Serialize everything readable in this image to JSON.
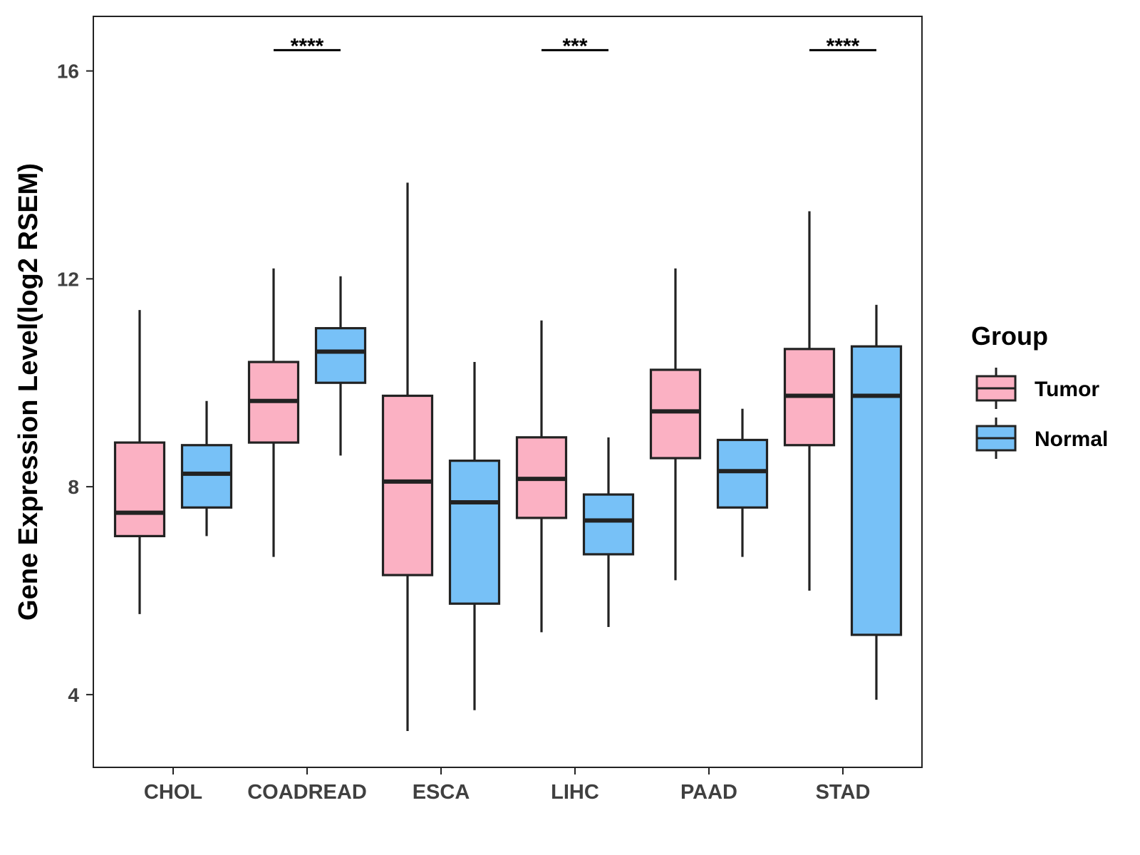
{
  "chart_data": {
    "type": "boxplot",
    "title": "",
    "xlabel": "",
    "ylabel": "Gene Expression Level(log2 RSEM)",
    "ylim": [
      2.6,
      17.05
    ],
    "yticks": [
      4,
      8,
      12,
      16
    ],
    "grid": false,
    "categories": [
      "CHOL",
      "COADREAD",
      "ESCA",
      "LIHC",
      "PAAD",
      "STAD"
    ],
    "legend": {
      "title": "Group",
      "position": "right",
      "entries": [
        {
          "name": "Tumor",
          "color": "#fbb1c3"
        },
        {
          "name": "Normal",
          "color": "#77c1f7"
        }
      ]
    },
    "series": [
      {
        "name": "Tumor",
        "color": "#fbb1c3",
        "boxes": [
          {
            "whisker_low": 5.55,
            "q1": 7.05,
            "median": 7.5,
            "q3": 8.85,
            "whisker_high": 11.4
          },
          {
            "whisker_low": 6.65,
            "q1": 8.85,
            "median": 9.65,
            "q3": 10.4,
            "whisker_high": 12.2
          },
          {
            "whisker_low": 3.3,
            "q1": 6.3,
            "median": 8.1,
            "q3": 9.75,
            "whisker_high": 13.85
          },
          {
            "whisker_low": 5.2,
            "q1": 7.4,
            "median": 8.15,
            "q3": 8.95,
            "whisker_high": 11.2
          },
          {
            "whisker_low": 6.2,
            "q1": 8.55,
            "median": 9.45,
            "q3": 10.25,
            "whisker_high": 12.2
          },
          {
            "whisker_low": 6.0,
            "q1": 8.8,
            "median": 9.75,
            "q3": 10.65,
            "whisker_high": 13.3
          }
        ]
      },
      {
        "name": "Normal",
        "color": "#77c1f7",
        "boxes": [
          {
            "whisker_low": 7.05,
            "q1": 7.6,
            "median": 8.25,
            "q3": 8.8,
            "whisker_high": 9.65
          },
          {
            "whisker_low": 8.6,
            "q1": 10.0,
            "median": 10.6,
            "q3": 11.05,
            "whisker_high": 12.05
          },
          {
            "whisker_low": 3.7,
            "q1": 5.75,
            "median": 7.7,
            "q3": 8.5,
            "whisker_high": 10.4
          },
          {
            "whisker_low": 5.3,
            "q1": 6.7,
            "median": 7.35,
            "q3": 7.85,
            "whisker_high": 8.95
          },
          {
            "whisker_low": 6.65,
            "q1": 7.6,
            "median": 8.3,
            "q3": 8.9,
            "whisker_high": 9.5
          },
          {
            "whisker_low": 3.9,
            "q1": 5.15,
            "median": 9.75,
            "q3": 10.7,
            "whisker_high": 11.5
          }
        ]
      }
    ],
    "significance": [
      {
        "category": "COADREAD",
        "label": "****",
        "y": 16.4
      },
      {
        "category": "LIHC",
        "label": "***",
        "y": 16.4
      },
      {
        "category": "STAD",
        "label": "****",
        "y": 16.4
      }
    ]
  }
}
